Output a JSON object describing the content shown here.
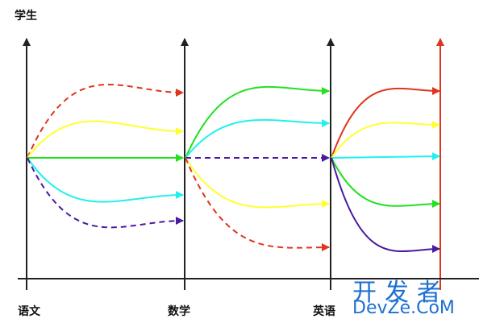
{
  "y_axis_label": "学生",
  "subjects": [
    "语文",
    "数学",
    "英语"
  ],
  "watermark": {
    "line1": "开发者",
    "line2": "DevZe.CoM"
  },
  "colors": {
    "axis": "#222222",
    "red": "#e0341c",
    "yellow": "#ffff33",
    "green": "#22e022",
    "cyan": "#22f0f0",
    "purple": "#4a1aa0"
  },
  "transitions": [
    {
      "from": "语文",
      "to": "数学",
      "color": "red",
      "style": "dashed"
    },
    {
      "from": "语文",
      "to": "数学",
      "color": "yellow",
      "style": "solid"
    },
    {
      "from": "语文",
      "to": "数学",
      "color": "green",
      "style": "solid"
    },
    {
      "from": "语文",
      "to": "数学",
      "color": "cyan",
      "style": "solid"
    },
    {
      "from": "语文",
      "to": "数学",
      "color": "purple",
      "style": "dashed"
    },
    {
      "from": "数学",
      "to": "英语",
      "color": "green",
      "style": "solid"
    },
    {
      "from": "数学",
      "to": "英语",
      "color": "cyan",
      "style": "solid"
    },
    {
      "from": "数学",
      "to": "英语",
      "color": "purple",
      "style": "dashed"
    },
    {
      "from": "数学",
      "to": "英语",
      "color": "yellow",
      "style": "solid"
    },
    {
      "from": "数学",
      "to": "英语",
      "color": "red",
      "style": "dashed"
    },
    {
      "from": "英语",
      "to": "result",
      "color": "red",
      "style": "solid"
    },
    {
      "from": "英语",
      "to": "result",
      "color": "yellow",
      "style": "solid"
    },
    {
      "from": "英语",
      "to": "result",
      "color": "cyan",
      "style": "solid"
    },
    {
      "from": "英语",
      "to": "result",
      "color": "green",
      "style": "solid"
    },
    {
      "from": "英语",
      "to": "result",
      "color": "purple",
      "style": "solid"
    }
  ]
}
